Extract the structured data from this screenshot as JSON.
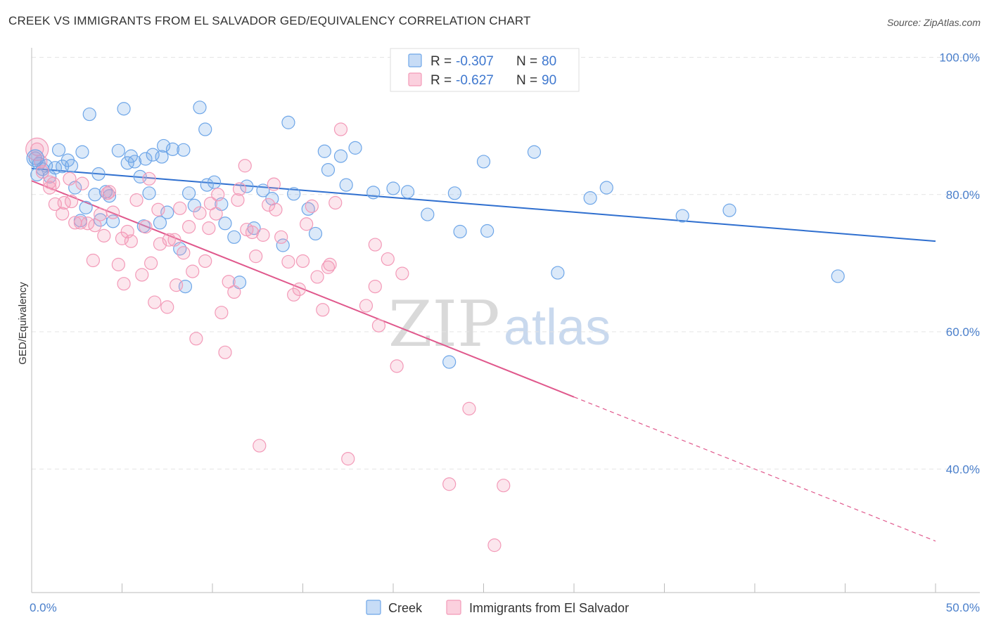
{
  "title": "CREEK VS IMMIGRANTS FROM EL SALVADOR GED/EQUIVALENCY CORRELATION CHART",
  "source": "Source: ZipAtlas.com",
  "watermark": {
    "zip": "ZIP",
    "atlas": "atlas"
  },
  "legend_top": [
    {
      "r_label": "R =",
      "r_value": "-0.307",
      "n_label": "N =",
      "n_value": "80",
      "color": "#6ea6e8"
    },
    {
      "r_label": "R =",
      "r_value": "-0.627",
      "n_label": "N =",
      "n_value": "90",
      "color": "#f39ab8"
    }
  ],
  "chart_data": {
    "type": "scatter",
    "title": "CREEK VS IMMIGRANTS FROM EL SALVADOR GED/EQUIVALENCY CORRELATION CHART",
    "xlabel": "",
    "ylabel": "GED/Equivalency",
    "xlim": [
      0,
      50
    ],
    "ylim": [
      22,
      102
    ],
    "x_tick_labels": [
      "0.0%",
      "50.0%"
    ],
    "y_ticks": [
      40,
      60,
      80,
      100
    ],
    "y_tick_labels": [
      "40.0%",
      "60.0%",
      "80.0%",
      "100.0%"
    ],
    "grid": true,
    "legend_position": "top-center",
    "series": [
      {
        "name": "Creek",
        "color": "#6ea6e8",
        "line_color": "#2f6fcf",
        "trend": {
          "x0": 0,
          "y0": 83.8,
          "x1": 50,
          "y1": 73.2
        },
        "points": [
          [
            0.2,
            85.3
          ],
          [
            0.4,
            84.5
          ],
          [
            0.6,
            83.7
          ],
          [
            0.8,
            84.2
          ],
          [
            1,
            82.6
          ],
          [
            1.3,
            83.9
          ],
          [
            1.5,
            86.5
          ],
          [
            1.7,
            84.1
          ],
          [
            2,
            85
          ],
          [
            2.2,
            84.2
          ],
          [
            2.4,
            81
          ],
          [
            2.8,
            86.2
          ],
          [
            3,
            78.1
          ],
          [
            3.2,
            91.7
          ],
          [
            3.5,
            80
          ],
          [
            3.8,
            76.3
          ],
          [
            3.7,
            83
          ],
          [
            4.1,
            80.4
          ],
          [
            4.3,
            79.8
          ],
          [
            4.5,
            76.1
          ],
          [
            4.8,
            86.4
          ],
          [
            5.1,
            92.5
          ],
          [
            5.3,
            84.6
          ],
          [
            5.5,
            85.6
          ],
          [
            5.7,
            84.8
          ],
          [
            6,
            82.6
          ],
          [
            6.2,
            75.4
          ],
          [
            6.3,
            85.2
          ],
          [
            6.5,
            80.2
          ],
          [
            6.7,
            85.8
          ],
          [
            7.1,
            75.9
          ],
          [
            7.2,
            85.5
          ],
          [
            7.3,
            87.1
          ],
          [
            7.5,
            77.4
          ],
          [
            7.8,
            86.6
          ],
          [
            8.2,
            72.1
          ],
          [
            8.4,
            86.5
          ],
          [
            8.5,
            66.6
          ],
          [
            8.7,
            80.2
          ],
          [
            9,
            78.4
          ],
          [
            9.3,
            92.7
          ],
          [
            9.6,
            89.5
          ],
          [
            9.7,
            81.4
          ],
          [
            10.1,
            81.8
          ],
          [
            10.5,
            78.6
          ],
          [
            10.7,
            75.8
          ],
          [
            11.2,
            73.8
          ],
          [
            11.5,
            67.2
          ],
          [
            11.9,
            81.2
          ],
          [
            12.3,
            75.1
          ],
          [
            12.8,
            80.6
          ],
          [
            13.3,
            79.4
          ],
          [
            13.9,
            72.6
          ],
          [
            14.2,
            90.5
          ],
          [
            14.5,
            80.1
          ],
          [
            15.3,
            77.9
          ],
          [
            15.7,
            74.3
          ],
          [
            16.2,
            86.3
          ],
          [
            16.4,
            83.6
          ],
          [
            17.1,
            85.6
          ],
          [
            17.4,
            81.4
          ],
          [
            17.9,
            86.8
          ],
          [
            18.9,
            80.3
          ],
          [
            20,
            80.9
          ],
          [
            20.8,
            80.4
          ],
          [
            21.9,
            77.1
          ],
          [
            23.1,
            55.6
          ],
          [
            23.4,
            80.2
          ],
          [
            23.7,
            74.6
          ],
          [
            25,
            84.8
          ],
          [
            25.2,
            74.7
          ],
          [
            27.8,
            86.2
          ],
          [
            29.1,
            68.6
          ],
          [
            30.9,
            79.5
          ],
          [
            31.8,
            81
          ],
          [
            36,
            76.9
          ],
          [
            38.6,
            77.7
          ],
          [
            44.6,
            68.1
          ],
          [
            0.3,
            82.9
          ],
          [
            2.7,
            76.2
          ]
        ]
      },
      {
        "name": "Immigrants from El Salvador",
        "color": "#f39ab8",
        "line_color": "#e0588c",
        "trend": {
          "x0": 0,
          "y0": 82.0,
          "x1": 30,
          "y1": 50.5
        },
        "trend_dashed": {
          "x0": 30,
          "y0": 50.5,
          "x1": 50,
          "y1": 29.5
        },
        "points": [
          [
            0.3,
            86.6
          ],
          [
            0.5,
            84.8
          ],
          [
            0.6,
            83.3
          ],
          [
            1,
            81.8
          ],
          [
            1,
            81
          ],
          [
            1.2,
            81.6
          ],
          [
            1.3,
            78.6
          ],
          [
            1.7,
            77.2
          ],
          [
            1.8,
            78.8
          ],
          [
            2.2,
            79
          ],
          [
            2.4,
            75.9
          ],
          [
            2.7,
            75.9
          ],
          [
            2.8,
            81.6
          ],
          [
            3.1,
            75.8
          ],
          [
            3.4,
            70.4
          ],
          [
            3.5,
            75.5
          ],
          [
            3.8,
            77.1
          ],
          [
            4,
            74
          ],
          [
            4.2,
            80.2
          ],
          [
            4.3,
            80.4
          ],
          [
            4.5,
            77.4
          ],
          [
            4.8,
            69.8
          ],
          [
            5,
            73.6
          ],
          [
            5.1,
            67
          ],
          [
            5.3,
            74.6
          ],
          [
            5.5,
            73.2
          ],
          [
            5.8,
            79.2
          ],
          [
            6.1,
            68.3
          ],
          [
            6.3,
            75.3
          ],
          [
            6.5,
            82.3
          ],
          [
            6.6,
            70
          ],
          [
            6.8,
            64.3
          ],
          [
            7,
            77.8
          ],
          [
            7.1,
            72.8
          ],
          [
            7.5,
            63.6
          ],
          [
            7.6,
            73.4
          ],
          [
            7.9,
            73.4
          ],
          [
            8,
            66.8
          ],
          [
            8.2,
            78
          ],
          [
            8.4,
            71.5
          ],
          [
            8.7,
            75.3
          ],
          [
            8.9,
            68.8
          ],
          [
            9.1,
            59
          ],
          [
            9.3,
            77.3
          ],
          [
            9.6,
            70.3
          ],
          [
            9.8,
            75.1
          ],
          [
            9.9,
            78.7
          ],
          [
            10.2,
            77.2
          ],
          [
            10.3,
            80
          ],
          [
            10.5,
            62.8
          ],
          [
            10.7,
            57
          ],
          [
            10.9,
            67.3
          ],
          [
            11.2,
            65.8
          ],
          [
            11.4,
            79.2
          ],
          [
            11.5,
            80.8
          ],
          [
            11.8,
            84.2
          ],
          [
            11.9,
            74.9
          ],
          [
            12.2,
            74.5
          ],
          [
            12.4,
            71
          ],
          [
            12.6,
            43.4
          ],
          [
            12.8,
            74.1
          ],
          [
            13.1,
            78.5
          ],
          [
            13.4,
            81.5
          ],
          [
            13.5,
            77.8
          ],
          [
            13.8,
            73.8
          ],
          [
            14.2,
            70.2
          ],
          [
            14.5,
            65.4
          ],
          [
            14.8,
            66.2
          ],
          [
            15,
            70.3
          ],
          [
            15.2,
            75.7
          ],
          [
            15.5,
            78.3
          ],
          [
            15.8,
            68
          ],
          [
            16.1,
            63.2
          ],
          [
            16.4,
            69.4
          ],
          [
            16.5,
            69.8
          ],
          [
            16.8,
            78.8
          ],
          [
            17.1,
            89.5
          ],
          [
            17.5,
            41.5
          ],
          [
            18.5,
            63.8
          ],
          [
            19,
            66.6
          ],
          [
            19,
            72.7
          ],
          [
            19.2,
            60.9
          ],
          [
            19.7,
            70.6
          ],
          [
            20.2,
            55
          ],
          [
            20.5,
            68.5
          ],
          [
            23.1,
            37.8
          ],
          [
            24.2,
            48.8
          ],
          [
            25.6,
            28.9
          ],
          [
            26.1,
            37.6
          ],
          [
            2.1,
            82.3
          ]
        ]
      }
    ]
  },
  "bottom_legend": [
    {
      "label": "Creek",
      "color": "#6ea6e8"
    },
    {
      "label": "Immigrants from El Salvador",
      "color": "#f39ab8"
    }
  ]
}
